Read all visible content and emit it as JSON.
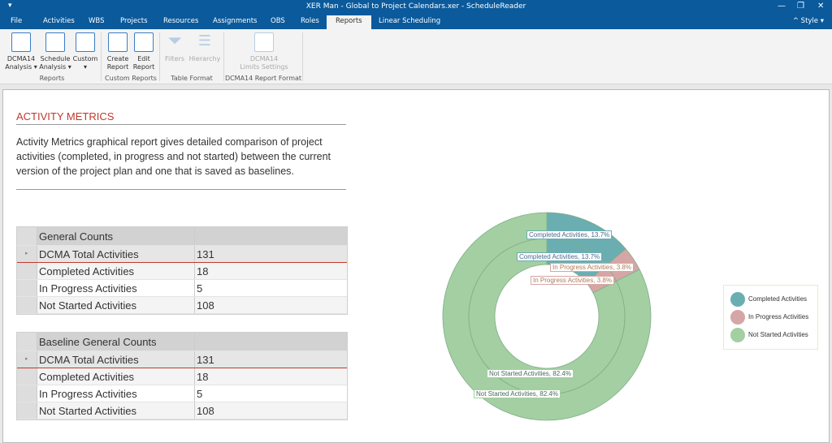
{
  "window": {
    "title": "XER Man - Global to Project Calendars.xer - ScheduleReader",
    "quick_access": "▾",
    "minimize": "—",
    "restore": "❐",
    "close": "✕"
  },
  "tabs": [
    "File",
    "Activities",
    "WBS",
    "Projects",
    "Resources",
    "Assignments",
    "OBS",
    "Roles",
    "Reports",
    "Linear Scheduling"
  ],
  "active_tab": "Reports",
  "style_menu": "Style",
  "ribbon": {
    "buttons": [
      {
        "label1": "DCMA14",
        "label2": "Analysis ▾",
        "icon": "checklist-icon"
      },
      {
        "label1": "Schedule",
        "label2": "Analysis ▾",
        "icon": "bar-chart-icon"
      },
      {
        "label1": "Custom",
        "label2": "▾",
        "icon": "layout-icon"
      },
      {
        "label1": "Create",
        "label2": "Report",
        "icon": "create-report-icon"
      },
      {
        "label1": "Edit",
        "label2": "Report",
        "icon": "edit-report-icon"
      },
      {
        "label1": "Filters",
        "label2": "",
        "icon": "filter-icon",
        "disabled": true
      },
      {
        "label1": "Hierarchy",
        "label2": "",
        "icon": "hierarchy-icon",
        "disabled": true
      },
      {
        "label1": "DCMA14",
        "label2": "Limits Settings",
        "icon": "checklist-icon",
        "disabled": true
      }
    ],
    "groups": [
      "Reports",
      "Custom Reports",
      "Table Format",
      "DCMA14 Report Format"
    ]
  },
  "report": {
    "title": "ACTIVITY METRICS",
    "description": "Activity Metrics graphical report gives detailed comparison of project activities (completed, in progress and not started) between the current version of the project plan and one that is saved as baselines."
  },
  "tables": [
    {
      "header": "General Counts",
      "rows": [
        [
          "DCMA Total Activities",
          "131"
        ],
        [
          "Completed Activities",
          "18"
        ],
        [
          "In Progress Activities",
          "5"
        ],
        [
          "Not Started Activities",
          "108"
        ]
      ]
    },
    {
      "header": "Baseline General Counts",
      "rows": [
        [
          "DCMA Total Activities",
          "131"
        ],
        [
          "Completed Activities",
          "18"
        ],
        [
          "In Progress Activities",
          "5"
        ],
        [
          "Not Started Activities",
          "108"
        ]
      ]
    }
  ],
  "chart_data": {
    "type": "pie",
    "subtype": "donut-nested",
    "categories": [
      "Completed Activities",
      "In Progress Activities",
      "Not Started Activities"
    ],
    "colors": [
      "#6aaeb2",
      "#d6a5a5",
      "#a3cfa3"
    ],
    "series": [
      {
        "ring": "outer",
        "values": [
          13.7,
          3.8,
          82.4
        ],
        "labels": [
          "Completed Activities, 13.7%",
          "In Progress Activities, 3.8%",
          "Not Started Activities, 82.4%"
        ]
      },
      {
        "ring": "inner",
        "values": [
          13.7,
          3.8,
          82.4
        ],
        "labels": [
          "Completed Activities, 13.7%",
          "In Progress Activities, 3.8%",
          "Not Started Activities, 82.4%"
        ]
      }
    ],
    "legend": {
      "placement": "right",
      "entries": [
        "Completed Activities",
        "In Progress Activities",
        "Not Started Activities"
      ]
    }
  }
}
